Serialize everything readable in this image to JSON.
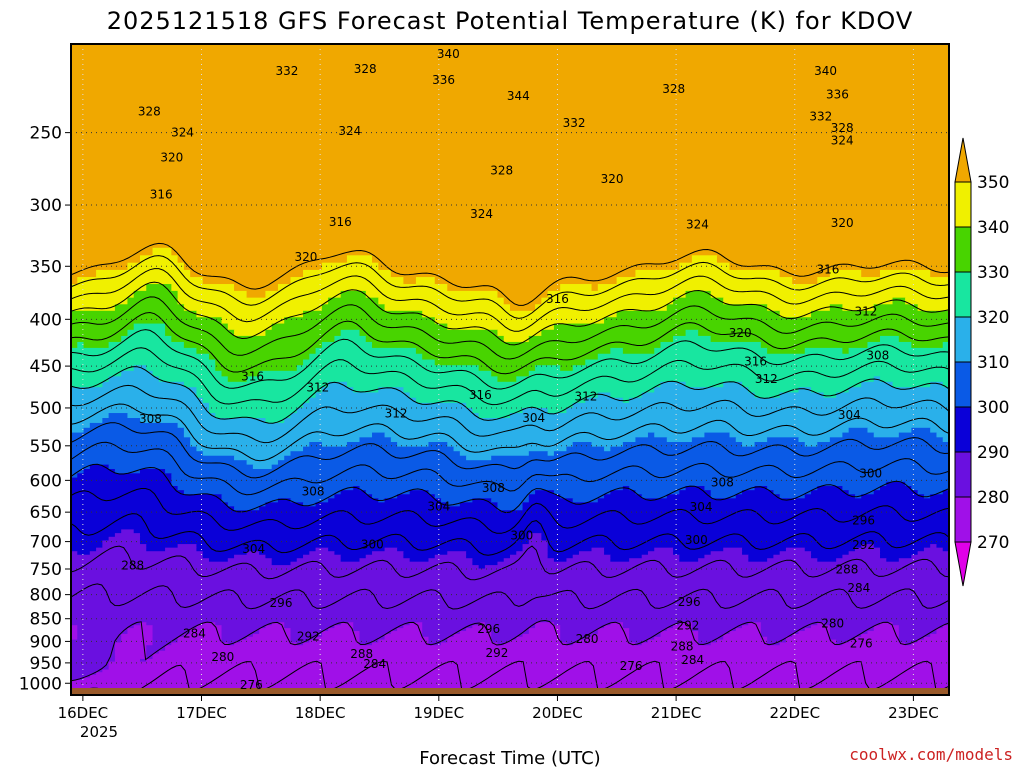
{
  "chart_data": {
    "type": "contour",
    "title": "2025121518 GFS Forecast Potential Temperature (K) for KDOV",
    "xlabel": "Forecast Time (UTC)",
    "ylabel": "",
    "credit": "coolwx.com/models",
    "x_ticks": [
      "16DEC",
      "17DEC",
      "18DEC",
      "19DEC",
      "20DEC",
      "21DEC",
      "22DEC",
      "23DEC"
    ],
    "x_year": "2025",
    "y_ticks": [
      250,
      300,
      350,
      400,
      450,
      500,
      550,
      600,
      650,
      700,
      750,
      800,
      850,
      900,
      950,
      1000
    ],
    "y_tick_labels": [
      "250",
      "300",
      "350",
      "400",
      "450",
      "500",
      "550",
      "600",
      "650",
      "700",
      "750",
      "800",
      "850",
      "900",
      "950",
      "1000"
    ],
    "ylim_hpa": [
      200,
      1030
    ],
    "xlim_days": [
      -0.1,
      7.3
    ],
    "colorbar": {
      "levels": [
        270,
        280,
        290,
        300,
        310,
        320,
        330,
        340,
        350
      ],
      "labels": [
        "270",
        "280",
        "290",
        "300",
        "310",
        "320",
        "330",
        "340",
        "350"
      ],
      "colors": [
        "#e000e8",
        "#a010e8",
        "#6a10e0",
        "#0a00d8",
        "#0a5ae6",
        "#2ab0ea",
        "#18e6a0",
        "#48d400",
        "#f0f000",
        "#f0a800"
      ]
    },
    "contour_labels": [
      {
        "v": "332",
        "x": 1.72,
        "p": 214
      },
      {
        "v": "328",
        "x": 2.38,
        "p": 213
      },
      {
        "v": "340",
        "x": 3.08,
        "p": 205
      },
      {
        "v": "336",
        "x": 3.04,
        "p": 219
      },
      {
        "v": "344",
        "x": 3.67,
        "p": 228
      },
      {
        "v": "328",
        "x": 4.98,
        "p": 224
      },
      {
        "v": "340",
        "x": 6.26,
        "p": 214
      },
      {
        "v": "336",
        "x": 6.36,
        "p": 227
      },
      {
        "v": "332",
        "x": 6.22,
        "p": 240
      },
      {
        "v": "328",
        "x": 6.4,
        "p": 247
      },
      {
        "v": "324",
        "x": 6.4,
        "p": 255
      },
      {
        "v": "328",
        "x": 0.56,
        "p": 237
      },
      {
        "v": "324",
        "x": 0.84,
        "p": 250
      },
      {
        "v": "320",
        "x": 0.75,
        "p": 266
      },
      {
        "v": "324",
        "x": 2.25,
        "p": 249
      },
      {
        "v": "332",
        "x": 4.14,
        "p": 244
      },
      {
        "v": "320",
        "x": 4.46,
        "p": 281
      },
      {
        "v": "328",
        "x": 3.53,
        "p": 275
      },
      {
        "v": "324",
        "x": 3.36,
        "p": 307
      },
      {
        "v": "324",
        "x": 5.18,
        "p": 315
      },
      {
        "v": "320",
        "x": 6.4,
        "p": 314
      },
      {
        "v": "316",
        "x": 0.66,
        "p": 292
      },
      {
        "v": "316",
        "x": 2.17,
        "p": 313
      },
      {
        "v": "320",
        "x": 1.88,
        "p": 342
      },
      {
        "v": "316",
        "x": 4.0,
        "p": 380
      },
      {
        "v": "316",
        "x": 6.28,
        "p": 353
      },
      {
        "v": "312",
        "x": 6.6,
        "p": 392
      },
      {
        "v": "320",
        "x": 5.54,
        "p": 414
      },
      {
        "v": "316",
        "x": 5.67,
        "p": 445
      },
      {
        "v": "312",
        "x": 5.76,
        "p": 465
      },
      {
        "v": "308",
        "x": 6.7,
        "p": 438
      },
      {
        "v": "316",
        "x": 1.43,
        "p": 462
      },
      {
        "v": "312",
        "x": 1.98,
        "p": 475
      },
      {
        "v": "316",
        "x": 3.35,
        "p": 484
      },
      {
        "v": "312",
        "x": 4.24,
        "p": 486
      },
      {
        "v": "312",
        "x": 2.64,
        "p": 507
      },
      {
        "v": "308",
        "x": 0.57,
        "p": 514
      },
      {
        "v": "304",
        "x": 3.8,
        "p": 513
      },
      {
        "v": "304",
        "x": 6.46,
        "p": 509
      },
      {
        "v": "300",
        "x": 6.64,
        "p": 590
      },
      {
        "v": "308",
        "x": 1.94,
        "p": 617
      },
      {
        "v": "308",
        "x": 3.46,
        "p": 612
      },
      {
        "v": "304",
        "x": 3.0,
        "p": 641
      },
      {
        "v": "308",
        "x": 5.39,
        "p": 603
      },
      {
        "v": "304",
        "x": 5.21,
        "p": 642
      },
      {
        "v": "296",
        "x": 6.58,
        "p": 664
      },
      {
        "v": "300",
        "x": 5.17,
        "p": 697
      },
      {
        "v": "292",
        "x": 6.58,
        "p": 706
      },
      {
        "v": "304",
        "x": 1.44,
        "p": 713
      },
      {
        "v": "300",
        "x": 2.44,
        "p": 705
      },
      {
        "v": "300",
        "x": 3.7,
        "p": 689
      },
      {
        "v": "288",
        "x": 6.44,
        "p": 751
      },
      {
        "v": "284",
        "x": 6.54,
        "p": 787
      },
      {
        "v": "288",
        "x": 0.42,
        "p": 743
      },
      {
        "v": "296",
        "x": 1.67,
        "p": 817
      },
      {
        "v": "296",
        "x": 5.11,
        "p": 815
      },
      {
        "v": "296",
        "x": 3.42,
        "p": 872
      },
      {
        "v": "292",
        "x": 5.1,
        "p": 865
      },
      {
        "v": "280",
        "x": 6.32,
        "p": 860
      },
      {
        "v": "292",
        "x": 1.9,
        "p": 889
      },
      {
        "v": "284",
        "x": 0.94,
        "p": 882
      },
      {
        "v": "280",
        "x": 4.25,
        "p": 895
      },
      {
        "v": "288",
        "x": 5.05,
        "p": 912
      },
      {
        "v": "276",
        "x": 6.56,
        "p": 905
      },
      {
        "v": "292",
        "x": 3.49,
        "p": 927
      },
      {
        "v": "284",
        "x": 5.14,
        "p": 943
      },
      {
        "v": "288",
        "x": 2.35,
        "p": 929
      },
      {
        "v": "284",
        "x": 2.46,
        "p": 953
      },
      {
        "v": "276",
        "x": 4.62,
        "p": 958
      },
      {
        "v": "280",
        "x": 1.18,
        "p": 936
      },
      {
        "v": "276",
        "x": 1.42,
        "p": 1004
      }
    ]
  }
}
